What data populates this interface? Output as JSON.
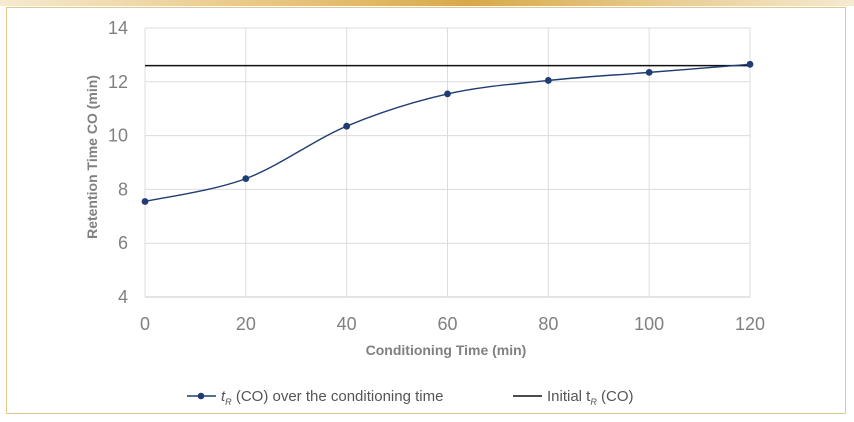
{
  "chart_data": {
    "type": "line",
    "title": "",
    "xlabel": "Conditioning Time (min)",
    "ylabel": "Retention Time CO (min)",
    "xlim": [
      0,
      120
    ],
    "ylim": [
      4,
      14
    ],
    "x_ticks": [
      "0",
      "20",
      "40",
      "60",
      "80",
      "100",
      "120"
    ],
    "y_ticks": [
      "4",
      "6",
      "8",
      "10",
      "12",
      "14"
    ],
    "grid": true,
    "legend_position": "bottom",
    "series": [
      {
        "name": "tR (CO) over the conditioning time",
        "legend_prefix": "t",
        "legend_sub": "R",
        "legend_suffix": " (CO) over the conditioning time",
        "color": "#1f3d73",
        "x": [
          0,
          20,
          40,
          60,
          80,
          100,
          120
        ],
        "y": [
          7.55,
          8.4,
          10.35,
          11.55,
          12.05,
          12.35,
          12.65
        ],
        "marker": "circle",
        "smooth": true
      },
      {
        "name": "Initial tR (CO)",
        "legend_prefix": "Initial t",
        "legend_sub": "R",
        "legend_suffix": " (CO)",
        "color": "#111111",
        "x": [
          0,
          120
        ],
        "y": [
          12.6,
          12.6
        ],
        "marker": "none",
        "smooth": false
      }
    ]
  }
}
